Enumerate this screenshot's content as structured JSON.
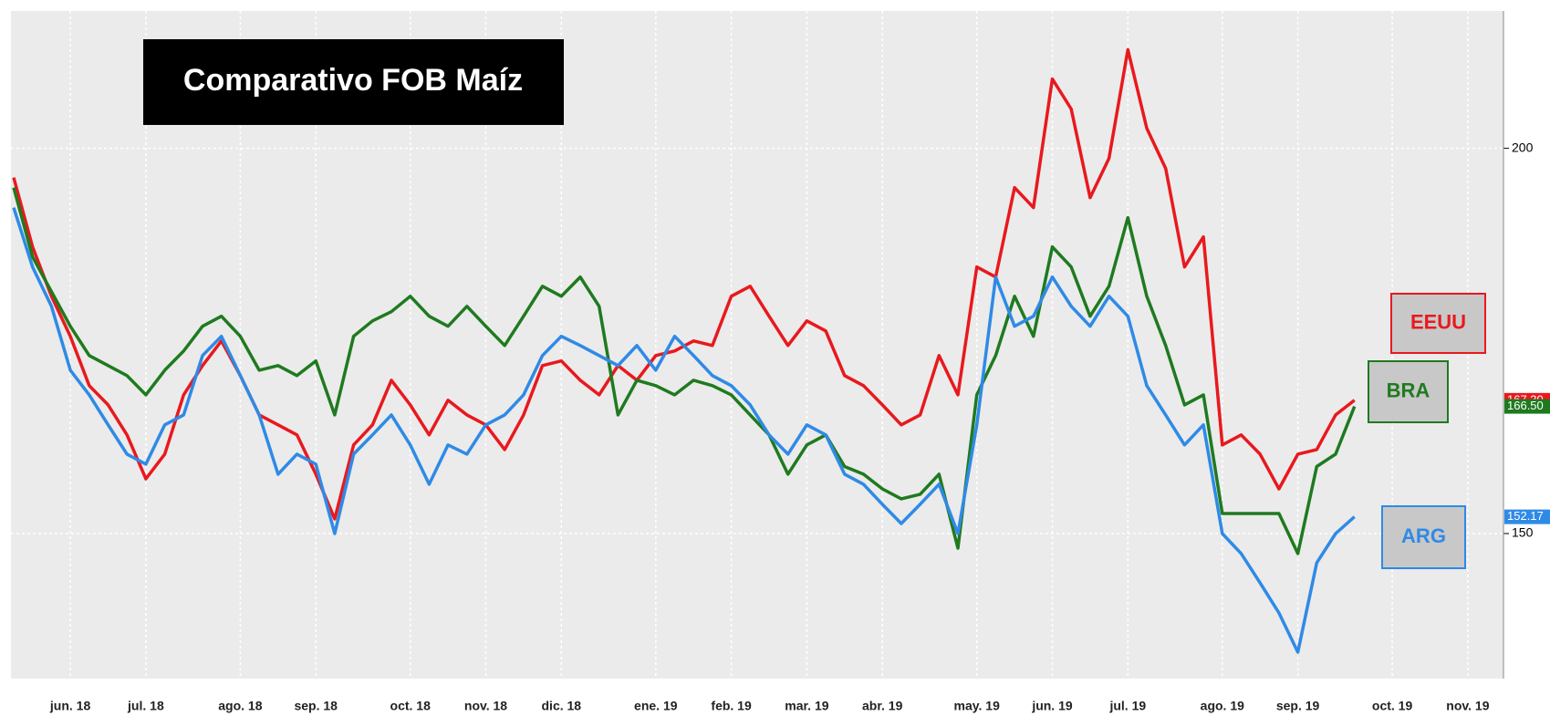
{
  "chart_data": {
    "type": "line",
    "title": "Comparativo FOB Maíz",
    "categories": [
      null,
      null,
      null,
      "jun. 18",
      null,
      null,
      null,
      "jul. 18",
      null,
      null,
      null,
      null,
      "ago. 18",
      null,
      null,
      null,
      "sep. 18",
      null,
      null,
      null,
      null,
      "oct. 18",
      null,
      null,
      null,
      "nov. 18",
      null,
      null,
      null,
      "dic. 18",
      null,
      null,
      null,
      null,
      "ene. 19",
      null,
      null,
      null,
      "feb. 19",
      null,
      null,
      null,
      "mar. 19",
      null,
      null,
      null,
      "abr. 19",
      null,
      null,
      null,
      null,
      "may. 19",
      null,
      null,
      null,
      "jun. 19",
      null,
      null,
      null,
      "jul. 19",
      null,
      null,
      null,
      null,
      "ago. 19",
      null,
      null,
      null,
      "sep. 19",
      null,
      null,
      null,
      null,
      "oct. 19",
      null,
      null,
      null,
      "nov. 19"
    ],
    "series": [
      {
        "name": "EEUU",
        "color": "#e8191e",
        "last_label": "167.30",
        "values": [
          196.2,
          187.2,
          180.8,
          175.6,
          169.2,
          166.7,
          162.8,
          157.1,
          160.3,
          168,
          171.8,
          175,
          170.5,
          165.4,
          164.1,
          162.8,
          157.7,
          151.9,
          161.5,
          164.1,
          169.9,
          166.7,
          162.8,
          167.3,
          165.4,
          164.1,
          160.9,
          165.4,
          171.8,
          172.4,
          169.9,
          168,
          171.8,
          169.9,
          173.1,
          173.7,
          175,
          174.4,
          180.8,
          182.1,
          178.2,
          174.4,
          177.6,
          176.3,
          170.5,
          169.2,
          166.7,
          164.1,
          165.4,
          173.1,
          168,
          184.6,
          183.3,
          194.9,
          192.3,
          209,
          205.1,
          193.6,
          198.7,
          212.8,
          202.6,
          197.4,
          184.6,
          188.5,
          161.5,
          162.8,
          160.3,
          155.8,
          160.3,
          160.9,
          165.4,
          167.3,
          null,
          null,
          null,
          null,
          null,
          null
        ]
      },
      {
        "name": "BRA",
        "color": "#1f7a1f",
        "last_label": "166.50",
        "values": [
          194.9,
          185.9,
          181.4,
          176.9,
          173.1,
          171.8,
          170.5,
          168,
          171.2,
          173.7,
          176.9,
          178.2,
          175.6,
          171.2,
          171.8,
          170.5,
          172.4,
          165.4,
          175.6,
          177.6,
          178.8,
          180.8,
          178.2,
          176.9,
          179.5,
          176.9,
          174.4,
          178.2,
          182.1,
          180.8,
          183.3,
          179.5,
          165.4,
          169.9,
          169.2,
          168,
          169.9,
          169.2,
          168,
          165.4,
          162.8,
          157.7,
          161.5,
          162.8,
          158.7,
          157.7,
          155.8,
          154.5,
          155.1,
          157.7,
          148.1,
          168,
          173.1,
          180.8,
          175.6,
          187.2,
          184.6,
          178.2,
          182.1,
          191,
          180.8,
          174.4,
          166.7,
          168,
          152.6,
          152.6,
          152.6,
          152.6,
          147.4,
          158.7,
          160.3,
          166.5,
          null,
          null,
          null,
          null,
          null,
          null
        ]
      },
      {
        "name": "ARG",
        "color": "#2f8ae6",
        "last_label": "152.17",
        "values": [
          192.3,
          184.6,
          179.5,
          171.2,
          168,
          164.1,
          160.3,
          159,
          164.1,
          165.4,
          173.1,
          175.6,
          170.5,
          165.4,
          157.7,
          160.3,
          159,
          150,
          160.3,
          162.8,
          165.4,
          161.5,
          156.4,
          161.5,
          160.3,
          164.1,
          165.4,
          168,
          173.1,
          175.6,
          174.4,
          173.1,
          171.8,
          174.4,
          171.2,
          175.6,
          173.1,
          170.5,
          169.2,
          166.7,
          162.8,
          160.3,
          164.1,
          162.8,
          157.7,
          156.4,
          153.8,
          151.3,
          153.8,
          156.4,
          150,
          164.1,
          183.3,
          176.9,
          178.2,
          183.3,
          179.5,
          176.9,
          180.8,
          178.2,
          169.2,
          165.4,
          161.5,
          164.1,
          150,
          147.4,
          143.6,
          139.7,
          134.6,
          146.2,
          150,
          152.17,
          null,
          null,
          null,
          null,
          null,
          null
        ]
      }
    ],
    "ylim": [
      132,
      217
    ],
    "yticks": [
      150,
      200
    ],
    "grid": true
  }
}
